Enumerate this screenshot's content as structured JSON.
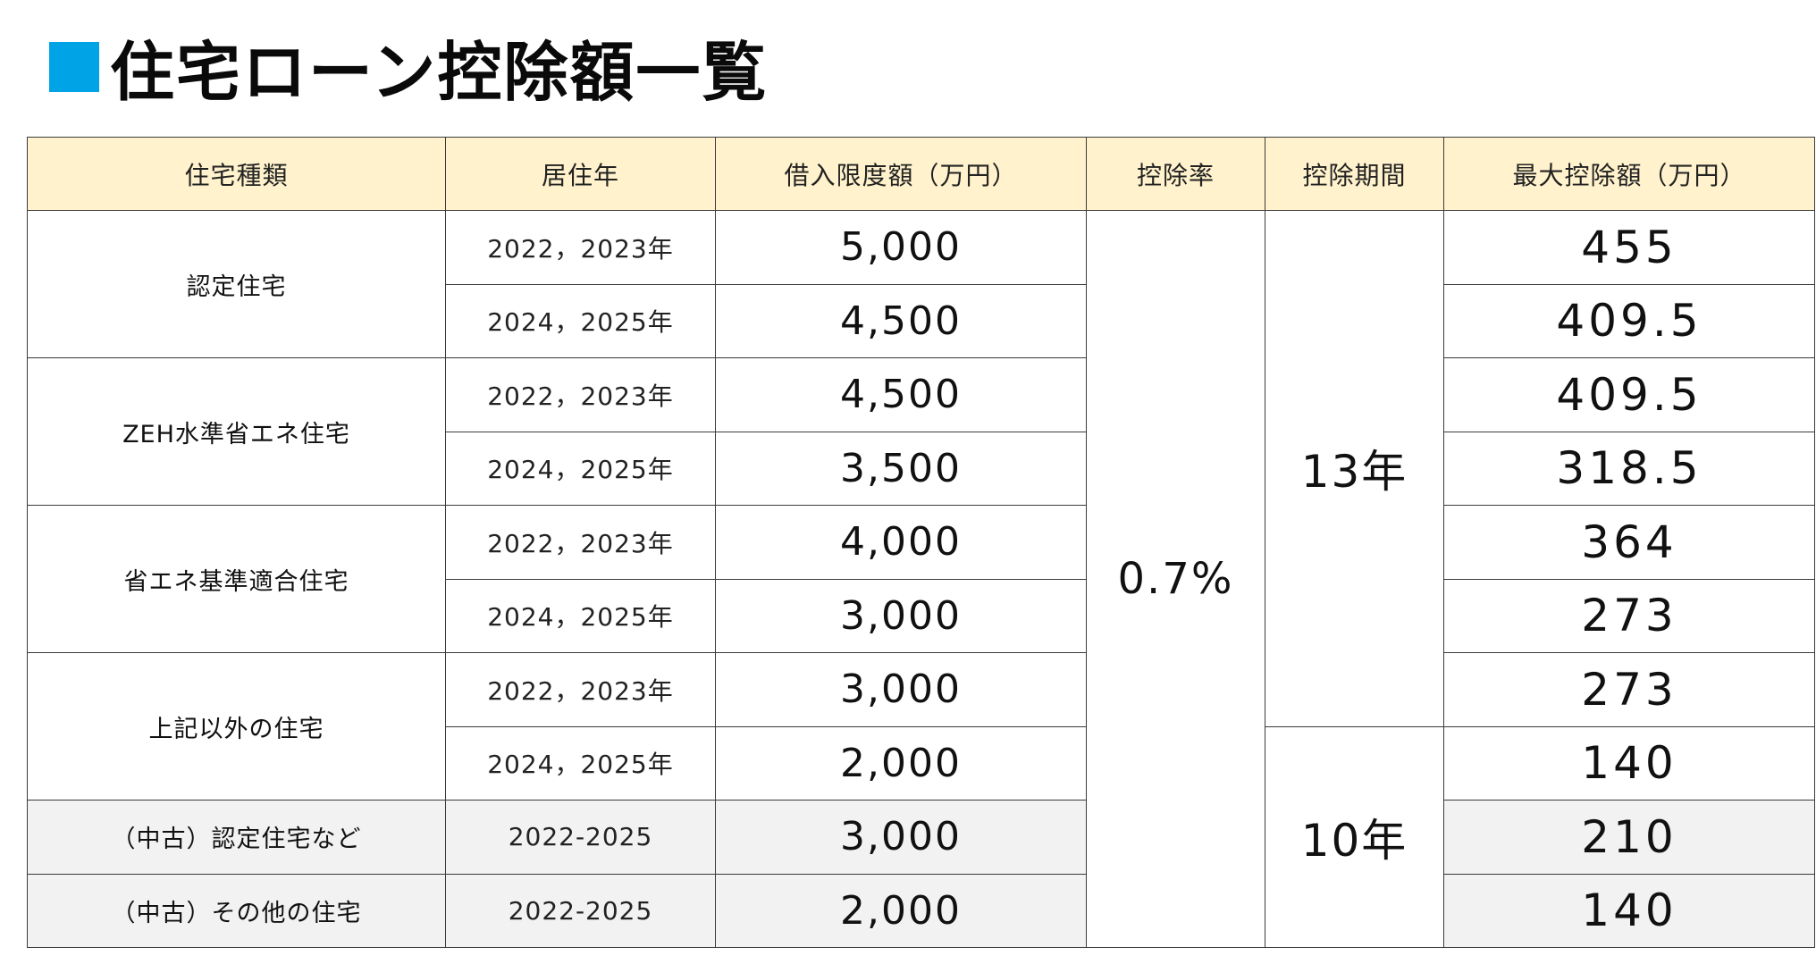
{
  "title": "住宅ローン控除額一覧",
  "headers": [
    "住宅種類",
    "居住年",
    "借入限度額（万円）",
    "控除率",
    "控除期間",
    "最大控除額（万円）"
  ],
  "rate": "0.7%",
  "periods": [
    "13年",
    "10年"
  ],
  "rows": [
    {
      "type": "認定住宅",
      "year": "2022，2023年",
      "limit": "5,000",
      "max": "455"
    },
    {
      "year": "2024，2025年",
      "limit": "4,500",
      "max": "409.5"
    },
    {
      "type": "ZEH水準省エネ住宅",
      "year": "2022，2023年",
      "limit": "4,500",
      "max": "409.5"
    },
    {
      "year": "2024，2025年",
      "limit": "3,500",
      "max": "318.5"
    },
    {
      "type": "省エネ基準適合住宅",
      "year": "2022，2023年",
      "limit": "4,000",
      "max": "364"
    },
    {
      "year": "2024，2025年",
      "limit": "3,000",
      "max": "273"
    },
    {
      "type": "上記以外の住宅",
      "year": "2022，2023年",
      "limit": "3,000",
      "max": "273"
    },
    {
      "year": "2024，2025年",
      "limit": "2,000",
      "max": "140"
    },
    {
      "type": "（中古）認定住宅など",
      "year": "2022-2025",
      "limit": "3,000",
      "max": "210"
    },
    {
      "type": "（中古）その他の住宅",
      "year": "2022-2025",
      "limit": "2,000",
      "max": "140"
    }
  ],
  "colors": {
    "title_square": "#00a3e6",
    "header_bg": "#fff2cc",
    "used_row_bg": "#f2f2f2"
  }
}
